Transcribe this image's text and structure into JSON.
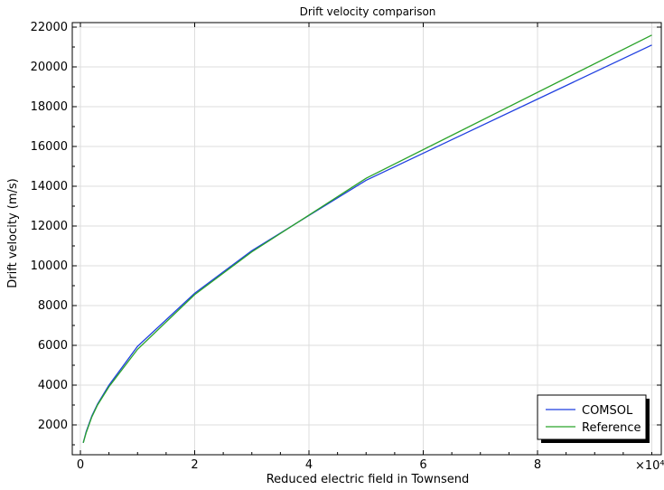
{
  "chart_data": {
    "type": "line",
    "title": "Drift velocity comparison",
    "xlabel": "Reduced electric field in Townsend",
    "ylabel": "Drift velocity (m/s)",
    "x_multiplier_label": "×10⁴",
    "x_multiplier": 10000,
    "xlim": [
      0,
      10
    ],
    "ylim": [
      1000,
      22000
    ],
    "x_ticks": [
      0,
      2,
      4,
      6,
      8
    ],
    "x_tick_labels": [
      "0",
      "2",
      "4",
      "6",
      "8"
    ],
    "y_ticks": [
      2000,
      4000,
      6000,
      8000,
      10000,
      12000,
      14000,
      16000,
      18000,
      20000,
      22000
    ],
    "y_tick_labels": [
      "2000",
      "4000",
      "6000",
      "8000",
      "10000",
      "12000",
      "14000",
      "16000",
      "18000",
      "20000",
      "22000"
    ],
    "grid": true,
    "legend_position": "bottom-right",
    "series": [
      {
        "name": "COMSOL",
        "color": "#1f3fe0",
        "x": [
          0.05,
          0.1,
          0.2,
          0.3,
          0.5,
          1,
          2,
          3,
          4,
          5,
          10
        ],
        "y": [
          1100,
          1650,
          2450,
          3050,
          4000,
          5950,
          8620,
          10760,
          12530,
          14300,
          21100
        ]
      },
      {
        "name": "Reference",
        "color": "#2aa32a",
        "x": [
          0.05,
          0.1,
          0.2,
          0.3,
          0.5,
          1,
          2,
          3,
          4,
          5,
          10
        ],
        "y": [
          1100,
          1600,
          2400,
          3000,
          3920,
          5800,
          8550,
          10700,
          12550,
          14400,
          21600
        ]
      }
    ]
  }
}
